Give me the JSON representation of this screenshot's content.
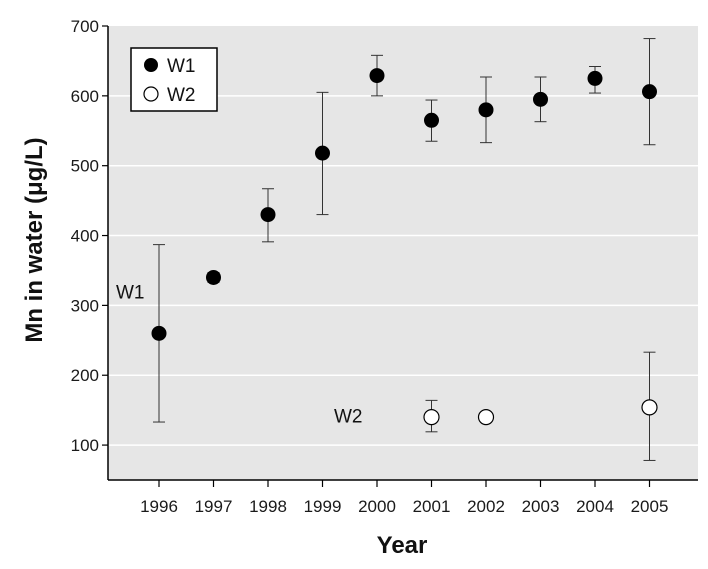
{
  "chart_data": {
    "type": "scatter",
    "title": "",
    "xlabel": "Year",
    "ylabel": "Mn in water (μg/L)",
    "x_categories": [
      "1996",
      "1997",
      "1998",
      "1999",
      "2000",
      "2001",
      "2002",
      "2003",
      "2004",
      "2005"
    ],
    "yticks": [
      "100",
      "200",
      "300",
      "400",
      "500",
      "600",
      "700"
    ],
    "ylim": [
      50,
      700
    ],
    "grid": "horizontal",
    "colors": {
      "plot_background": "#e6e6e6",
      "grid": "#ffffff",
      "W1": "#000000",
      "W2": "#ffffff"
    },
    "legend": {
      "placement": "top-left",
      "entries": [
        {
          "label": "W1",
          "marker": "filled-circle"
        },
        {
          "label": "W2",
          "marker": "open-circle"
        }
      ]
    },
    "annotations": [
      {
        "text": "W1",
        "x": "1996",
        "y": 320
      },
      {
        "text": "W2",
        "x": "2000",
        "y": 142
      }
    ],
    "series": [
      {
        "name": "W1",
        "points": [
          {
            "x": "1996",
            "y": 260,
            "lo": 133,
            "hi": 387
          },
          {
            "x": "1997",
            "y": 340,
            "lo": 333,
            "hi": 347
          },
          {
            "x": "1998",
            "y": 430,
            "lo": 391,
            "hi": 467
          },
          {
            "x": "1999",
            "y": 518,
            "lo": 430,
            "hi": 605
          },
          {
            "x": "2000",
            "y": 629,
            "lo": 600,
            "hi": 658
          },
          {
            "x": "2001",
            "y": 565,
            "lo": 535,
            "hi": 594
          },
          {
            "x": "2002",
            "y": 580,
            "lo": 533,
            "hi": 627
          },
          {
            "x": "2003",
            "y": 595,
            "lo": 563,
            "hi": 627
          },
          {
            "x": "2004",
            "y": 625,
            "lo": 604,
            "hi": 642
          },
          {
            "x": "2005",
            "y": 606,
            "lo": 530,
            "hi": 682
          }
        ]
      },
      {
        "name": "W2",
        "points": [
          {
            "x": "2001",
            "y": 140,
            "lo": 119,
            "hi": 164
          },
          {
            "x": "2002",
            "y": 140
          },
          {
            "x": "2005",
            "y": 154,
            "lo": 78,
            "hi": 233
          }
        ]
      }
    ]
  }
}
